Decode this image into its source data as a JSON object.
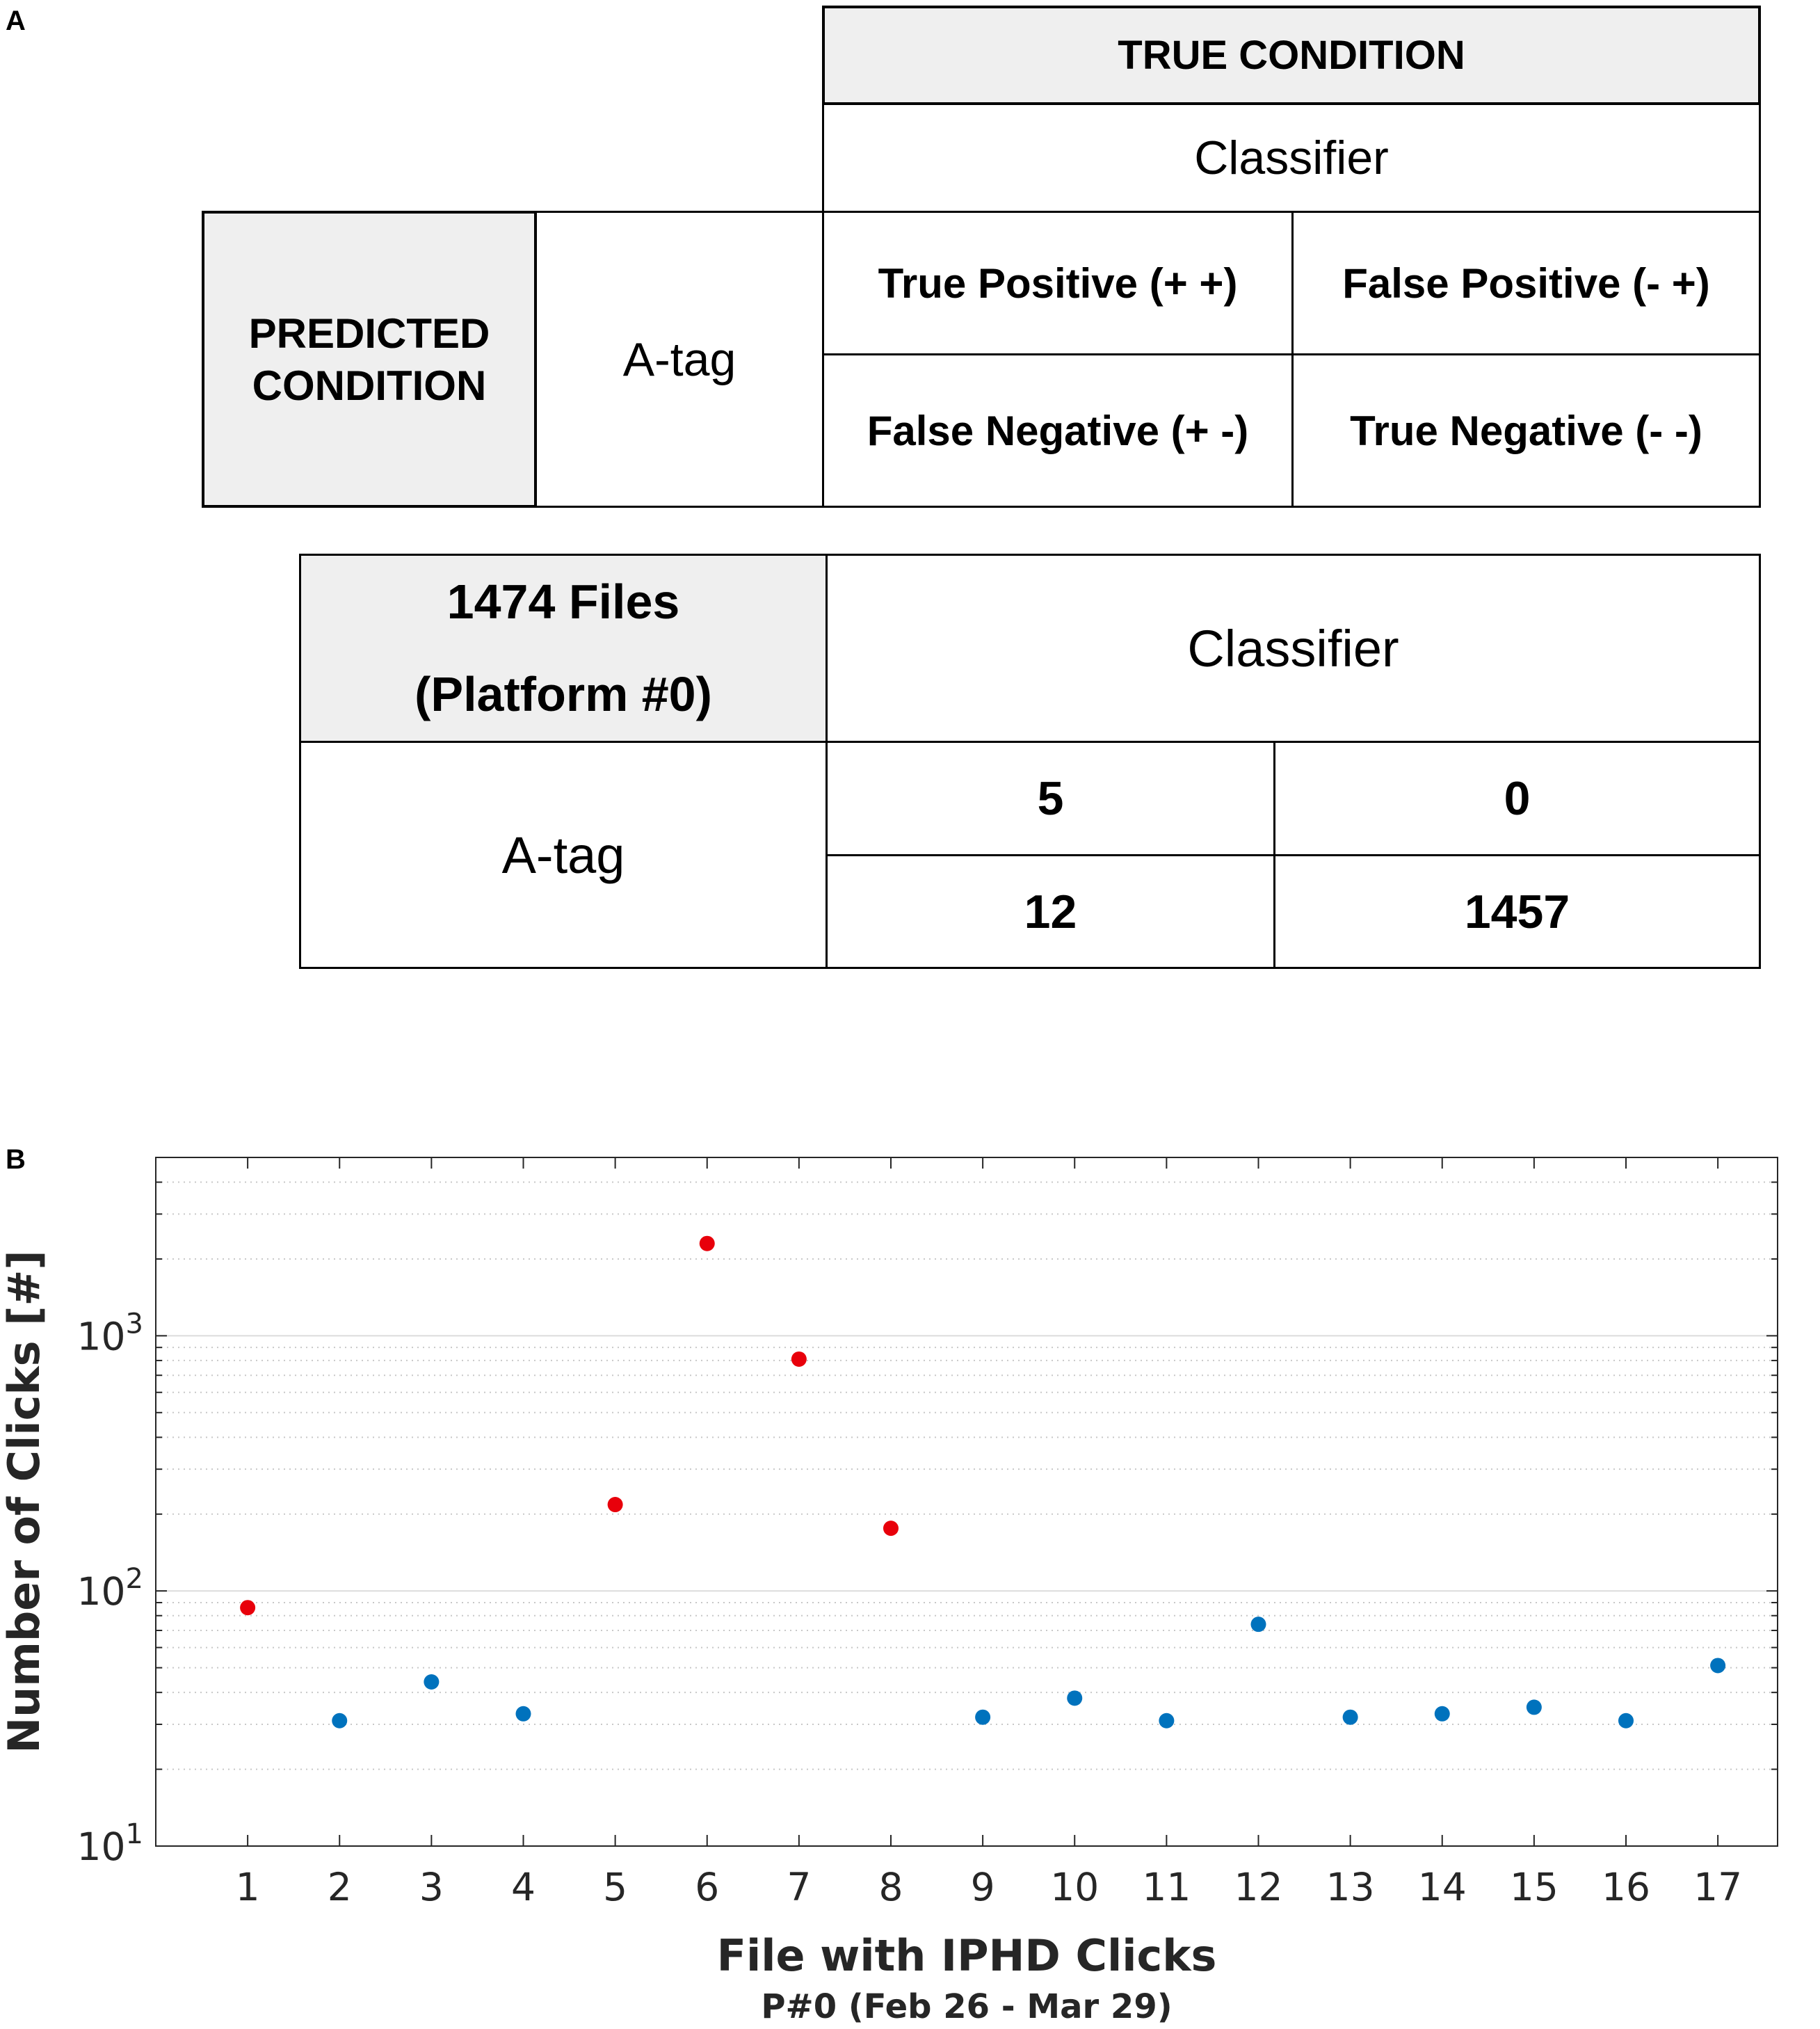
{
  "panel_labels": {
    "a": "A",
    "b": "B"
  },
  "confusion_legend": {
    "true_condition": "TRUE CONDITION",
    "classifier": "Classifier",
    "predicted_condition": [
      "PREDICTED",
      "CONDITION"
    ],
    "a_tag": "A-tag",
    "true_positive": "True Positive (+ +)",
    "false_positive": "False Positive (- +)",
    "false_negative": "False Negative (+ -)",
    "true_negative": "True Negative (- -)"
  },
  "confusion_counts": {
    "files_line1": "1474 Files",
    "files_line2": "(Platform #0)",
    "classifier": "Classifier",
    "a_tag": "A-tag",
    "true_positive": "5",
    "false_positive": "0",
    "false_negative": "12",
    "true_negative": "1457"
  },
  "chart_data": {
    "type": "scatter",
    "xlabel": "File with IPHD Clicks",
    "xlabel_sub": "P#0 (Feb 26 - Mar 29)",
    "ylabel": "Number of Clicks [#]",
    "yscale": "log",
    "ylim": [
      10,
      5000
    ],
    "xlim": [
      0,
      17.65
    ],
    "x_ticks": [
      1,
      2,
      3,
      4,
      5,
      6,
      7,
      8,
      9,
      10,
      11,
      12,
      13,
      14,
      15,
      16,
      17
    ],
    "y_ticks": [
      10,
      100,
      1000
    ],
    "y_tick_labels": [
      {
        "base": "10",
        "exp": "1"
      },
      {
        "base": "10",
        "exp": "2"
      },
      {
        "base": "10",
        "exp": "3"
      }
    ],
    "grid": true,
    "colors": {
      "red": "#e8000b",
      "blue": "#0072bd"
    },
    "points": [
      {
        "x": 1,
        "y": 86,
        "color": "red"
      },
      {
        "x": 2,
        "y": 31,
        "color": "blue"
      },
      {
        "x": 3,
        "y": 44,
        "color": "blue"
      },
      {
        "x": 4,
        "y": 33,
        "color": "blue"
      },
      {
        "x": 5,
        "y": 218,
        "color": "red"
      },
      {
        "x": 6,
        "y": 2300,
        "color": "red"
      },
      {
        "x": 7,
        "y": 810,
        "color": "red"
      },
      {
        "x": 8,
        "y": 176,
        "color": "red"
      },
      {
        "x": 9,
        "y": 32,
        "color": "blue"
      },
      {
        "x": 10,
        "y": 38,
        "color": "blue"
      },
      {
        "x": 11,
        "y": 31,
        "color": "blue"
      },
      {
        "x": 12,
        "y": 74,
        "color": "blue"
      },
      {
        "x": 13,
        "y": 32,
        "color": "blue"
      },
      {
        "x": 14,
        "y": 33,
        "color": "blue"
      },
      {
        "x": 15,
        "y": 35,
        "color": "blue"
      },
      {
        "x": 16,
        "y": 31,
        "color": "blue"
      },
      {
        "x": 17,
        "y": 51,
        "color": "blue"
      }
    ]
  }
}
